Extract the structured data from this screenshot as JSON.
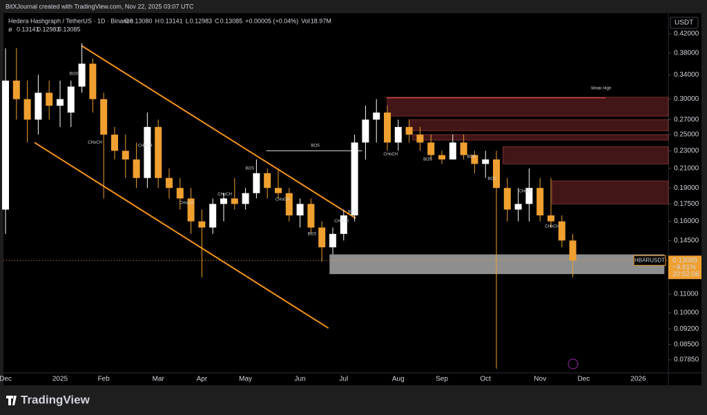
{
  "header": {
    "credit": "BitXJournal created with TradingView.com, Nov 22, 2025 03:07 UTC",
    "symbol": "Hedera Hashgraph / TetherUS · 1D · Binance",
    "ohlc": [
      {
        "label": "O",
        "value": "0.13080"
      },
      {
        "label": "H",
        "value": "0.13141"
      },
      {
        "label": "L",
        "value": "0.12983"
      },
      {
        "label": "C",
        "value": "0.13085"
      }
    ],
    "change": "+0.00005 (+0.04%)",
    "volume_label": "Vol",
    "volume": "18.97M",
    "second_line_symbol": "ø",
    "second_line": [
      "0.13141",
      "0.12983",
      "0.13085"
    ]
  },
  "chart_data": {
    "type": "candlestick",
    "log": true,
    "currency": "USDT",
    "up_color": "#ffffff",
    "down_color": "#f0a030",
    "ylim": [
      0.0734,
      0.462
    ],
    "yticks": [
      {
        "value": 0.42,
        "label": "0.42000"
      },
      {
        "value": 0.38,
        "label": "0.38000"
      },
      {
        "value": 0.34,
        "label": "0.34000"
      },
      {
        "value": 0.3,
        "label": "0.30000"
      },
      {
        "value": 0.27,
        "label": "0.27000"
      },
      {
        "value": 0.25,
        "label": "0.25000"
      },
      {
        "value": 0.23,
        "label": "0.23000"
      },
      {
        "value": 0.21,
        "label": "0.21000"
      },
      {
        "value": 0.19,
        "label": "0.19000"
      },
      {
        "value": 0.175,
        "label": "0.17500"
      },
      {
        "value": 0.16,
        "label": "0.16000"
      },
      {
        "value": 0.145,
        "label": "0.14500"
      },
      {
        "value": 0.11,
        "label": "0.11000"
      },
      {
        "value": 0.1,
        "label": "0.10000"
      },
      {
        "value": 0.092,
        "label": "0.09200"
      },
      {
        "value": 0.085,
        "label": "0.08500"
      },
      {
        "value": 0.0785,
        "label": "0.07850"
      }
    ],
    "categories": [
      "Dec",
      null,
      null,
      null,
      null,
      "2025",
      null,
      null,
      null,
      "Feb",
      null,
      null,
      null,
      null,
      "Mar",
      null,
      null,
      null,
      "Apr",
      null,
      null,
      null,
      "May",
      null,
      null,
      null,
      null,
      "Jun",
      null,
      null,
      null,
      "Jul",
      null,
      null,
      null,
      null,
      "Aug",
      null,
      null,
      null,
      "Sep",
      null,
      null,
      null,
      "Oct",
      null,
      null,
      null,
      null,
      "Nov",
      null,
      null,
      null,
      "Dec",
      null,
      null,
      null,
      null,
      "2026",
      null,
      null
    ],
    "candles": [
      {
        "open": 0.17,
        "high": 0.39,
        "low": 0.15,
        "close": 0.33
      },
      {
        "open": 0.33,
        "high": 0.39,
        "low": 0.27,
        "close": 0.3
      },
      {
        "open": 0.3,
        "high": 0.33,
        "low": 0.24,
        "close": 0.27
      },
      {
        "open": 0.27,
        "high": 0.34,
        "low": 0.25,
        "close": 0.31
      },
      {
        "open": 0.31,
        "high": 0.33,
        "low": 0.27,
        "close": 0.29
      },
      {
        "open": 0.29,
        "high": 0.33,
        "low": 0.26,
        "close": 0.3
      },
      {
        "open": 0.28,
        "high": 0.33,
        "low": 0.26,
        "close": 0.32
      },
      {
        "open": 0.32,
        "high": 0.4,
        "low": 0.31,
        "close": 0.36
      },
      {
        "open": 0.36,
        "high": 0.37,
        "low": 0.28,
        "close": 0.3
      },
      {
        "open": 0.3,
        "high": 0.31,
        "low": 0.18,
        "close": 0.25
      },
      {
        "open": 0.25,
        "high": 0.26,
        "low": 0.22,
        "close": 0.23
      },
      {
        "open": 0.23,
        "high": 0.25,
        "low": 0.2,
        "close": 0.22
      },
      {
        "open": 0.22,
        "high": 0.24,
        "low": 0.19,
        "close": 0.2
      },
      {
        "open": 0.2,
        "high": 0.28,
        "low": 0.19,
        "close": 0.26
      },
      {
        "open": 0.26,
        "high": 0.27,
        "low": 0.19,
        "close": 0.2
      },
      {
        "open": 0.2,
        "high": 0.21,
        "low": 0.18,
        "close": 0.19
      },
      {
        "open": 0.19,
        "high": 0.2,
        "low": 0.17,
        "close": 0.18
      },
      {
        "open": 0.18,
        "high": 0.19,
        "low": 0.15,
        "close": 0.16
      },
      {
        "open": 0.16,
        "high": 0.17,
        "low": 0.12,
        "close": 0.155
      },
      {
        "open": 0.155,
        "high": 0.18,
        "low": 0.15,
        "close": 0.175
      },
      {
        "open": 0.175,
        "high": 0.185,
        "low": 0.16,
        "close": 0.18
      },
      {
        "open": 0.18,
        "high": 0.2,
        "low": 0.17,
        "close": 0.175
      },
      {
        "open": 0.175,
        "high": 0.19,
        "low": 0.17,
        "close": 0.185
      },
      {
        "open": 0.185,
        "high": 0.22,
        "low": 0.18,
        "close": 0.205
      },
      {
        "open": 0.205,
        "high": 0.21,
        "low": 0.18,
        "close": 0.19
      },
      {
        "open": 0.19,
        "high": 0.21,
        "low": 0.18,
        "close": 0.185
      },
      {
        "open": 0.185,
        "high": 0.19,
        "low": 0.16,
        "close": 0.165
      },
      {
        "open": 0.165,
        "high": 0.18,
        "low": 0.155,
        "close": 0.175
      },
      {
        "open": 0.175,
        "high": 0.18,
        "low": 0.15,
        "close": 0.155
      },
      {
        "open": 0.155,
        "high": 0.16,
        "low": 0.13,
        "close": 0.14
      },
      {
        "open": 0.14,
        "high": 0.155,
        "low": 0.135,
        "close": 0.15
      },
      {
        "open": 0.15,
        "high": 0.17,
        "low": 0.145,
        "close": 0.165
      },
      {
        "open": 0.165,
        "high": 0.25,
        "low": 0.16,
        "close": 0.24
      },
      {
        "open": 0.24,
        "high": 0.29,
        "low": 0.22,
        "close": 0.27
      },
      {
        "open": 0.27,
        "high": 0.3,
        "low": 0.24,
        "close": 0.28
      },
      {
        "open": 0.28,
        "high": 0.29,
        "low": 0.23,
        "close": 0.24
      },
      {
        "open": 0.24,
        "high": 0.27,
        "low": 0.23,
        "close": 0.26
      },
      {
        "open": 0.26,
        "high": 0.27,
        "low": 0.24,
        "close": 0.25
      },
      {
        "open": 0.25,
        "high": 0.26,
        "low": 0.23,
        "close": 0.24
      },
      {
        "open": 0.24,
        "high": 0.25,
        "low": 0.22,
        "close": 0.225
      },
      {
        "open": 0.225,
        "high": 0.23,
        "low": 0.215,
        "close": 0.22
      },
      {
        "open": 0.22,
        "high": 0.25,
        "low": 0.22,
        "close": 0.24
      },
      {
        "open": 0.24,
        "high": 0.25,
        "low": 0.22,
        "close": 0.225
      },
      {
        "open": 0.225,
        "high": 0.23,
        "low": 0.205,
        "close": 0.215
      },
      {
        "open": 0.215,
        "high": 0.23,
        "low": 0.2,
        "close": 0.22
      },
      {
        "open": 0.22,
        "high": 0.23,
        "low": 0.075,
        "close": 0.19
      },
      {
        "open": 0.19,
        "high": 0.2,
        "low": 0.16,
        "close": 0.17
      },
      {
        "open": 0.17,
        "high": 0.19,
        "low": 0.16,
        "close": 0.175
      },
      {
        "open": 0.175,
        "high": 0.21,
        "low": 0.16,
        "close": 0.19
      },
      {
        "open": 0.19,
        "high": 0.2,
        "low": 0.16,
        "close": 0.165
      },
      {
        "open": 0.165,
        "high": 0.2,
        "low": 0.155,
        "close": 0.16
      },
      {
        "open": 0.16,
        "high": 0.165,
        "low": 0.14,
        "close": 0.145
      },
      {
        "open": 0.145,
        "high": 0.15,
        "low": 0.12,
        "close": 0.13085
      },
      null,
      null,
      null,
      null,
      null,
      null,
      null,
      null
    ],
    "last_price": 0.13085,
    "price_badge": {
      "symbol": "HBARUSDT",
      "price": "0.13085",
      "change": "−9.61%",
      "countdown": "20:52:06"
    },
    "resistance_zones": [
      {
        "from": 35,
        "low": 0.275,
        "high": 0.303
      },
      {
        "from": 37,
        "low": 0.255,
        "high": 0.27
      },
      {
        "from": 37.3,
        "low": 0.243,
        "high": 0.25
      },
      {
        "from": 45.6,
        "low": 0.215,
        "high": 0.235
      },
      {
        "from": 50.1,
        "low": 0.175,
        "high": 0.197
      }
    ],
    "support_zone": {
      "from": 29.7,
      "to": 60.4,
      "low": 0.122,
      "high": 0.135
    },
    "channel": [
      {
        "x1": 6.96,
        "y1": 0.395,
        "x2": 32.1,
        "y2": 0.1626
      },
      {
        "x1": 2.66,
        "y1": 0.24,
        "x2": 29.6,
        "y2": 0.0924
      }
    ],
    "bos_line": {
      "x1": 23.9,
      "x2": 32.7,
      "price": 0.23
    },
    "weak_high_line": {
      "x1": 34.9,
      "x2": 55,
      "price": 0.302
    },
    "labels": [
      {
        "text": "BOS",
        "x": 6.27,
        "price": 0.342,
        "color": "#26a69a"
      },
      {
        "text": "CHoCH",
        "x": 8.2,
        "price": 0.24,
        "color": "#ef5350"
      },
      {
        "text": "CHoCH",
        "x": 12.8,
        "price": 0.236,
        "color": "#26a69a"
      },
      {
        "text": "CHoCH",
        "x": 16.6,
        "price": 0.176,
        "color": "#ef5350"
      },
      {
        "text": "CHoCH",
        "x": 20.1,
        "price": 0.184,
        "color": "#26a69a"
      },
      {
        "text": "BOS",
        "x": 22.4,
        "price": 0.21,
        "color": "#26a69a"
      },
      {
        "text": "CHoCH",
        "x": 25.4,
        "price": 0.179,
        "color": "#ef5350"
      },
      {
        "text": "BOS",
        "x": 28.1,
        "price": 0.15,
        "color": "#ef5350"
      },
      {
        "text": "CHoCH",
        "x": 30.8,
        "price": 0.16,
        "color": "#26a69a"
      },
      {
        "text": "BOS",
        "x": 31.8,
        "price": 0.168,
        "color": "#26a69a"
      },
      {
        "text": "BOS",
        "x": 28.4,
        "price": 0.236,
        "color": "#ffffff"
      },
      {
        "text": "CHoCH",
        "x": 35.3,
        "price": 0.226,
        "color": "#ef5350"
      },
      {
        "text": "BOS",
        "x": 38.7,
        "price": 0.22,
        "color": "#ef5350"
      },
      {
        "text": "BOS",
        "x": 42.7,
        "price": 0.223,
        "color": "#ef5350"
      },
      {
        "text": "BOS",
        "x": 44.6,
        "price": 0.199,
        "color": "#ef5350"
      },
      {
        "text": "CHoCH",
        "x": 47.7,
        "price": 0.187,
        "color": "#26a69a"
      },
      {
        "text": "CHoCH",
        "x": 50.1,
        "price": 0.156,
        "color": "#ef5350"
      },
      {
        "text": "Weak High",
        "x": 54.6,
        "price": 0.317,
        "color": "#ef5350"
      }
    ]
  },
  "footer": {
    "brand": "TradingView"
  }
}
